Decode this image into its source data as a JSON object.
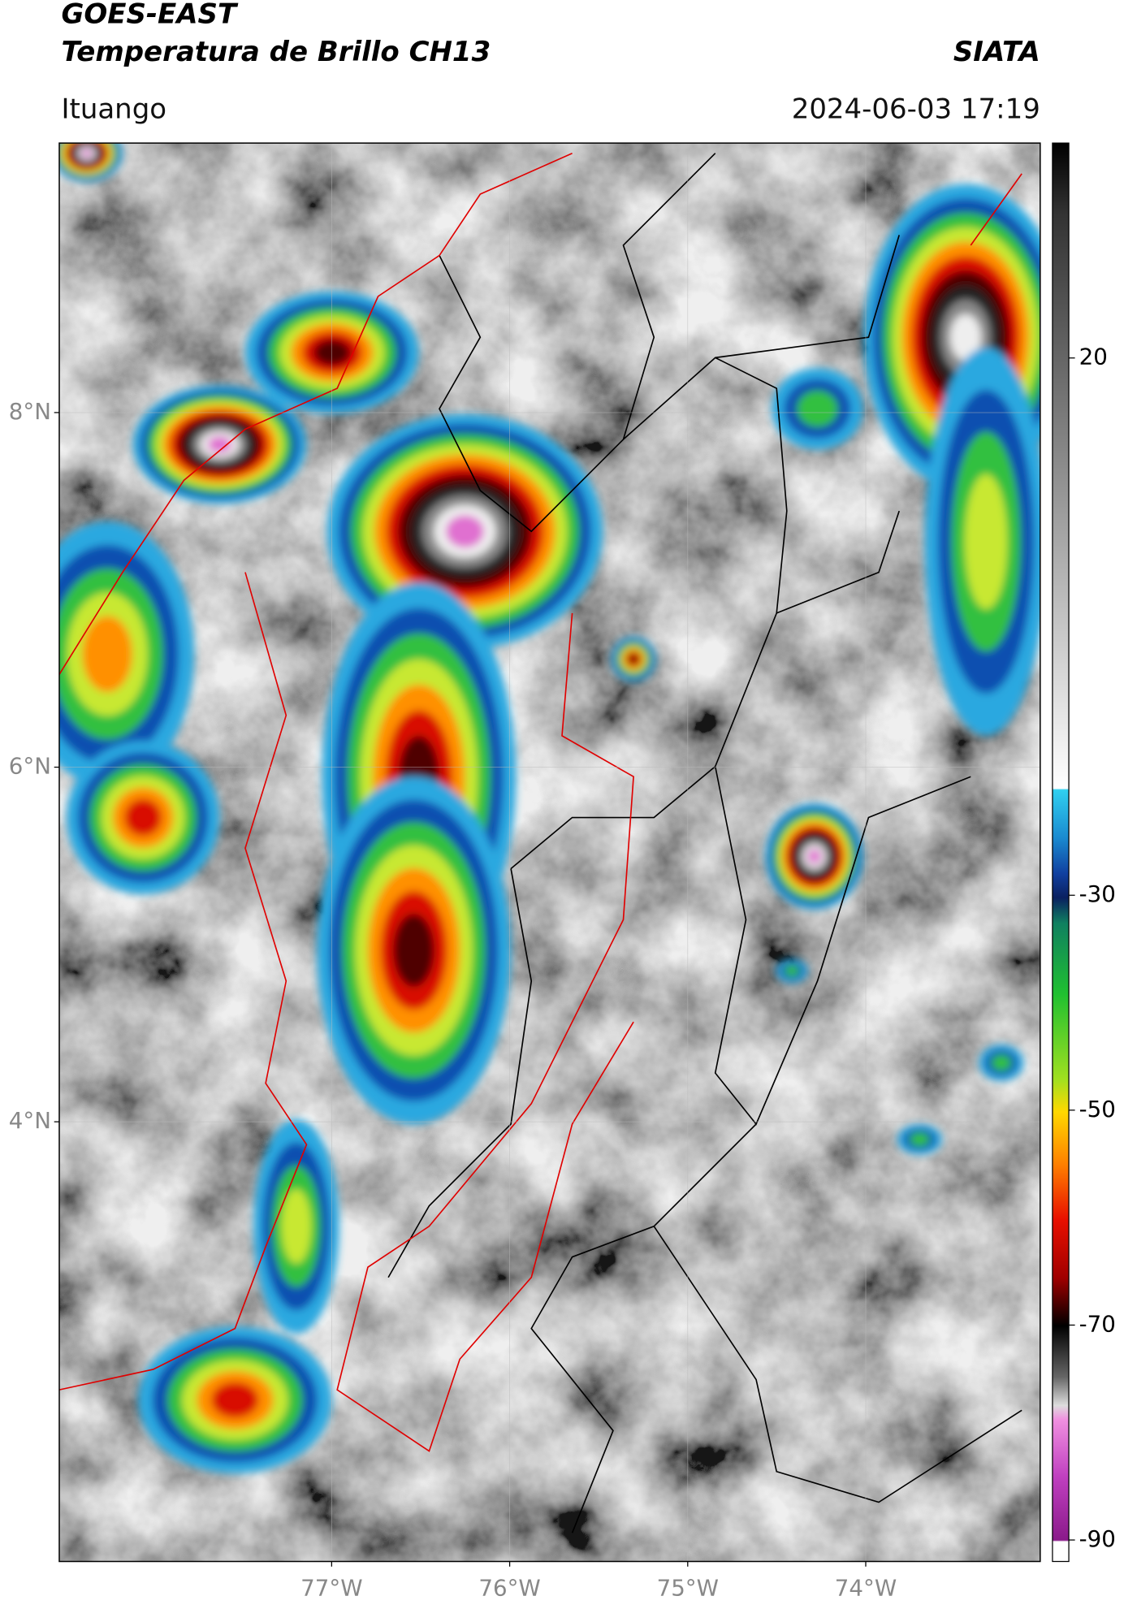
{
  "header": {
    "title": "GOES-EAST",
    "subtitle": "Temperatura de Brillo CH13",
    "source": "SIATA",
    "location": "Ituango",
    "timestamp": "2024-06-03 17:19"
  },
  "map": {
    "lat_range": [
      1.52,
      9.52
    ],
    "lon_range": [
      -78.53,
      -73.02
    ],
    "lat_ticks": [
      {
        "value": 8,
        "label": "8°N"
      },
      {
        "value": 6,
        "label": "6°N"
      },
      {
        "value": 4,
        "label": "4°N"
      }
    ],
    "lon_ticks": [
      {
        "value": -77,
        "label": "77°W"
      },
      {
        "value": -76,
        "label": "76°W"
      },
      {
        "value": -75,
        "label": "75°W"
      },
      {
        "value": -74,
        "label": "74°W"
      }
    ]
  },
  "colorbar": {
    "range": [
      -92,
      40
    ],
    "ticks": [
      20,
      -30,
      -50,
      -70,
      -90
    ]
  }
}
